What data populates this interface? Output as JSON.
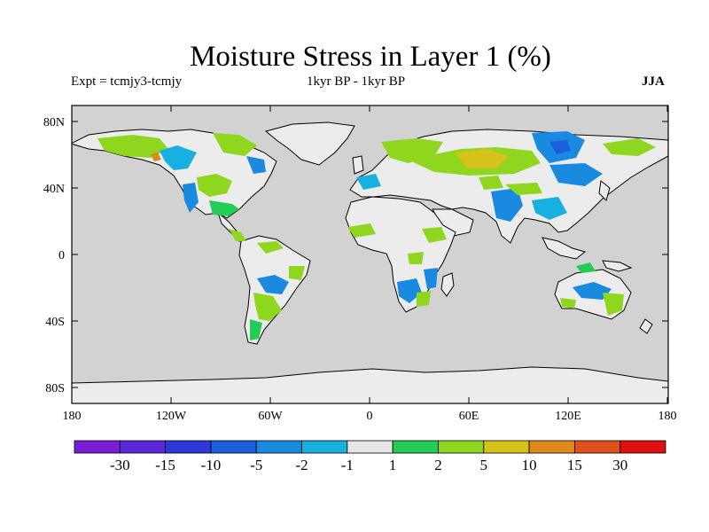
{
  "title": "Moisture Stress in Layer 1 (%)",
  "subtitle_left": "Expt = tcmjy3-tcmjy",
  "subtitle_center": "1kyr BP - 1kyr BP",
  "subtitle_right": "JJA",
  "colors": {
    "ocean": "#d2d2d2",
    "land": "#ececec",
    "coast": "#000000"
  },
  "map": {
    "lat_ticks": [
      "80N",
      "40N",
      "0",
      "40S",
      "80S"
    ],
    "lon_ticks": [
      "180",
      "120W",
      "60W",
      "0",
      "60E",
      "120E",
      "180"
    ]
  },
  "colorbar": {
    "colors": [
      "#7a1ed6",
      "#5a28d8",
      "#2c38d9",
      "#1a5fdc",
      "#1a8ae0",
      "#17b0e0",
      "#e6e6e6",
      "#22cc55",
      "#8fd61e",
      "#d6c21a",
      "#e0881a",
      "#e0501a",
      "#e01010"
    ],
    "labels": [
      "-30",
      "-15",
      "-10",
      "-5",
      "-2",
      "-1",
      "1",
      "2",
      "5",
      "10",
      "15",
      "30"
    ]
  }
}
